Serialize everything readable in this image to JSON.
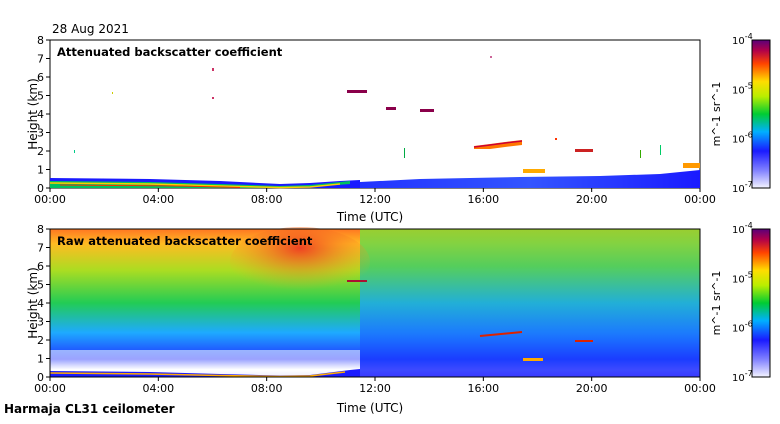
{
  "date": "28 Aug 2021",
  "footer": "Harmaja CL31 ceilometer",
  "chart_data": [
    {
      "type": "heatmap",
      "title": "Attenuated backscatter coefficient",
      "xlabel": "Time (UTC)",
      "ylabel": "Height (km)",
      "xticks": [
        "00:00",
        "04:00",
        "08:00",
        "12:00",
        "16:00",
        "20:00",
        "00:00"
      ],
      "xlim_hours": [
        0,
        24
      ],
      "ylim": [
        0,
        8
      ],
      "yticks": [
        0,
        1,
        2,
        3,
        4,
        5,
        6,
        7,
        8
      ],
      "colorbar": {
        "scale": "log",
        "min": "10^-7",
        "max": "10^-4",
        "unit": "m^-1 sr^-1",
        "labels": [
          "10^-4",
          "10^-5",
          "10^-6",
          "10^-7"
        ]
      },
      "features": [
        {
          "kind": "boundary-layer",
          "from_h": 0,
          "to_h": 11,
          "height_km": [
            0.2,
            0.5
          ]
        },
        {
          "kind": "cloud",
          "t_h": [
            11.0,
            11.7
          ],
          "height_km": 5.2
        },
        {
          "kind": "cloud",
          "t_h": [
            12.6,
            13.0
          ],
          "height_km": 4.3
        },
        {
          "kind": "cloud",
          "t_h": [
            13.7,
            14.2
          ],
          "height_km": 4.2
        },
        {
          "kind": "cloud",
          "t_h": [
            15.9,
            17.5
          ],
          "height_km": [
            2.3,
            2.6
          ]
        },
        {
          "kind": "cloud",
          "t_h": [
            17.4,
            18.1
          ],
          "height_km": 1.0
        },
        {
          "kind": "cloud",
          "t_h": [
            19.6,
            20.1
          ],
          "height_km": 2.0
        },
        {
          "kind": "cloud",
          "t_h": [
            23.4,
            24.0
          ],
          "height_km": 1.1
        }
      ]
    },
    {
      "type": "heatmap",
      "title": "Raw attenuated backscatter coefficient",
      "xlabel": "Time (UTC)",
      "ylabel": "Height (km)",
      "xticks": [
        "00:00",
        "04:00",
        "08:00",
        "12:00",
        "16:00",
        "20:00",
        "00:00"
      ],
      "ylim": [
        0,
        8
      ],
      "yticks": [
        0,
        1,
        2,
        3,
        4,
        5,
        6,
        7,
        8
      ],
      "colorbar": {
        "scale": "log",
        "min": "10^-7",
        "max": "10^-4",
        "unit": "m^-1 sr^-1",
        "labels": [
          "10^-4",
          "10^-5",
          "10^-6",
          "10^-7"
        ]
      }
    }
  ]
}
